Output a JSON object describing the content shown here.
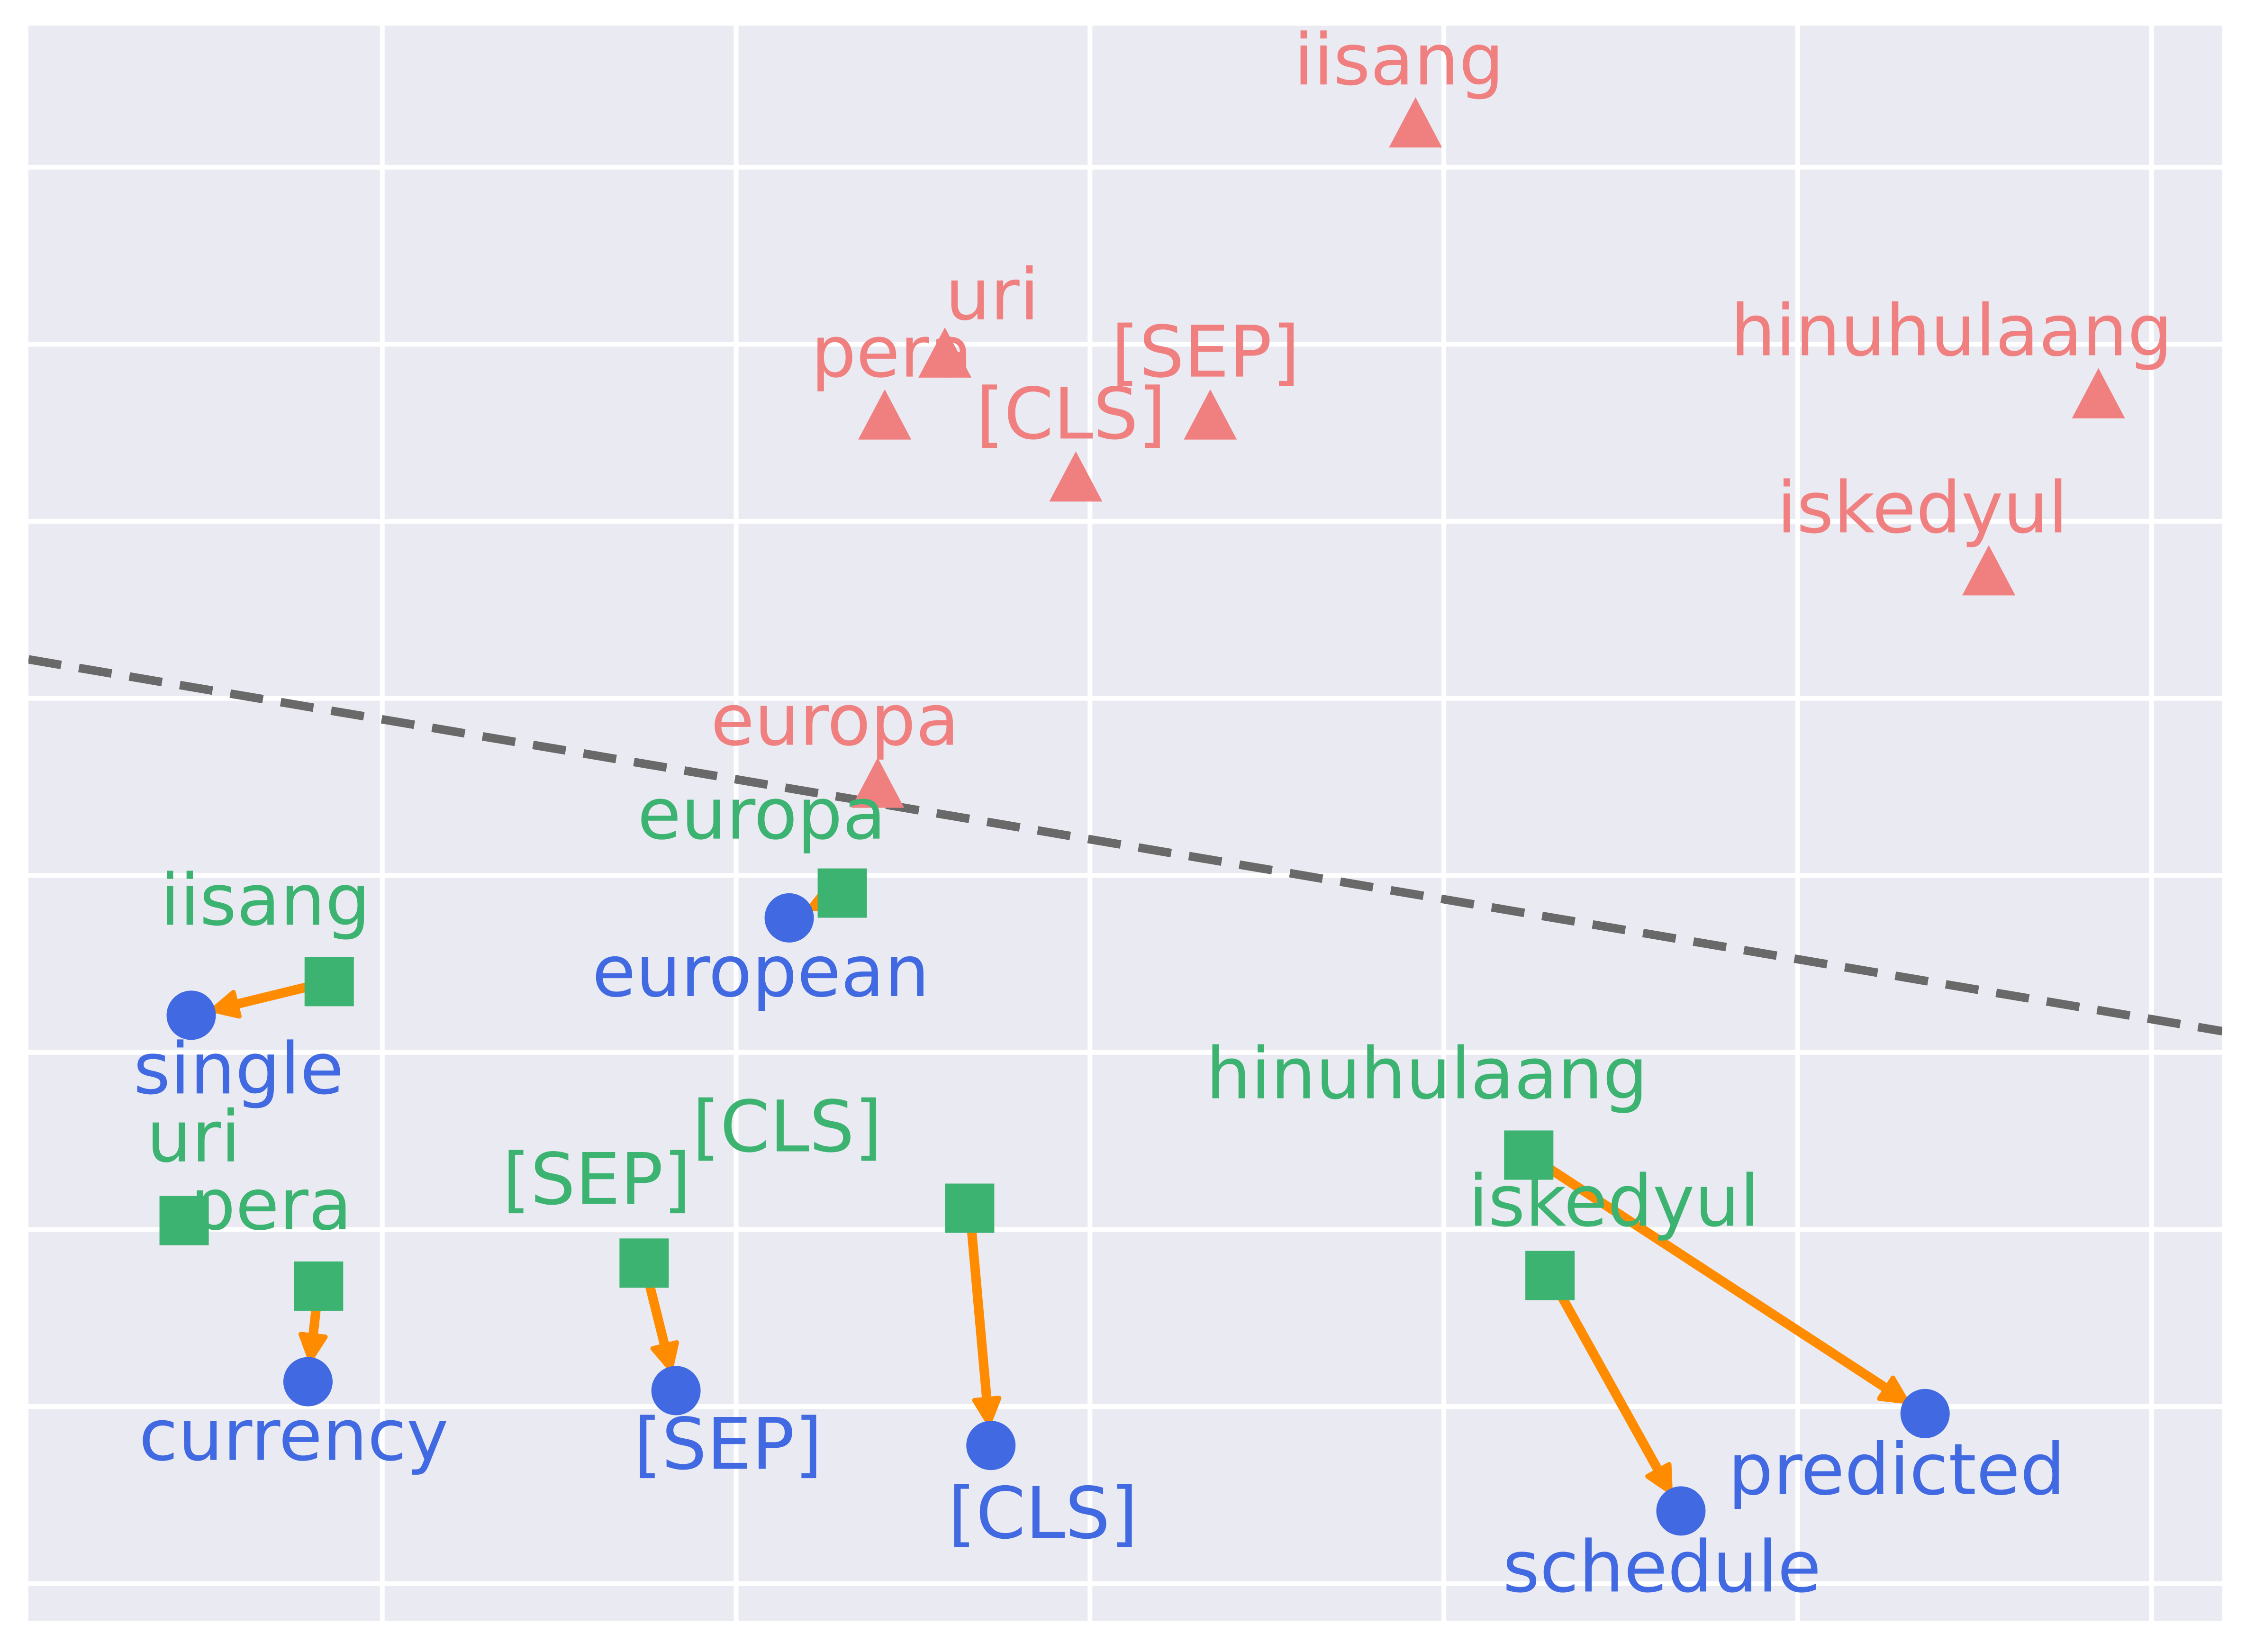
{
  "chart_data": {
    "type": "scatter",
    "title": "",
    "xlabel": "",
    "ylabel": "",
    "xlim": [
      -0.43,
      5.77
    ],
    "ylim": [
      -0.21,
      8.8
    ],
    "grid": true,
    "x_gridlines": [
      0.57,
      1.57,
      2.57,
      3.57,
      4.57,
      5.57
    ],
    "y_gridlines": [
      0,
      1,
      2,
      3,
      4,
      5,
      6,
      7,
      8
    ],
    "tick_labels_visible": false,
    "colors": {
      "background": "#eaeaf2",
      "grid": "#ffffff",
      "triangles": "#f08080",
      "squares": "#3cb371",
      "circles": "#4169e1",
      "arrows": "#ff8c00",
      "boundary": "#696969"
    },
    "boundary_line": {
      "style": "dashed",
      "points": [
        [
          -0.43,
          5.22
        ],
        [
          5.77,
          3.12
        ]
      ]
    },
    "series": [
      {
        "marker": "triangle",
        "color": "#f08080",
        "points": [
          {
            "label": "iisang",
            "x": 3.49,
            "y": 8.24
          },
          {
            "label": "uri",
            "x": 2.16,
            "y": 6.94
          },
          {
            "label": "pera",
            "x": 1.99,
            "y": 6.59
          },
          {
            "label": "[SEP]",
            "x": 2.91,
            "y": 6.59
          },
          {
            "label": "[CLS]",
            "x": 2.53,
            "y": 6.24
          },
          {
            "label": "hinuhulaang",
            "x": 5.42,
            "y": 6.71
          },
          {
            "label": "iskedyul",
            "x": 5.11,
            "y": 5.71
          },
          {
            "label": "europa",
            "x": 1.97,
            "y": 4.51
          }
        ]
      },
      {
        "marker": "square",
        "color": "#3cb371",
        "points": [
          {
            "label": "europa",
            "x": 1.87,
            "y": 3.9
          },
          {
            "label": "iisang",
            "x": 0.42,
            "y": 3.4
          },
          {
            "label": "uri",
            "x": 0.01,
            "y": 2.05
          },
          {
            "label": "pera",
            "x": 0.39,
            "y": 1.68
          },
          {
            "label": "[SEP]",
            "x": 1.31,
            "y": 1.81
          },
          {
            "label": "[CLS]",
            "x": 2.23,
            "y": 2.12
          },
          {
            "label": "hinuhulaang",
            "x": 3.81,
            "y": 2.42
          },
          {
            "label": "iskedyul",
            "x": 3.87,
            "y": 1.74
          }
        ]
      },
      {
        "marker": "circle",
        "color": "#4169e1",
        "points": [
          {
            "label": "european",
            "x": 1.72,
            "y": 3.76
          },
          {
            "label": "single",
            "x": 0.03,
            "y": 3.21
          },
          {
            "label": "currency",
            "x": 0.36,
            "y": 1.14
          },
          {
            "label": "[SEP]",
            "x": 1.4,
            "y": 1.09
          },
          {
            "label": "[CLS]",
            "x": 2.29,
            "y": 0.78
          },
          {
            "label": "predicted",
            "x": 4.93,
            "y": 0.96
          },
          {
            "label": "schedule",
            "x": 4.24,
            "y": 0.41
          }
        ]
      }
    ],
    "arrows": [
      {
        "from": [
          1.87,
          3.9
        ],
        "to": [
          1.72,
          3.76
        ]
      },
      {
        "from": [
          0.42,
          3.4
        ],
        "to": [
          0.03,
          3.21
        ]
      },
      {
        "from": [
          0.39,
          1.68
        ],
        "to": [
          0.36,
          1.14
        ]
      },
      {
        "from": [
          1.31,
          1.81
        ],
        "to": [
          1.4,
          1.09
        ]
      },
      {
        "from": [
          2.23,
          2.12
        ],
        "to": [
          2.29,
          0.78
        ]
      },
      {
        "from": [
          3.81,
          2.42
        ],
        "to": [
          4.93,
          0.96
        ]
      },
      {
        "from": [
          3.87,
          1.74
        ],
        "to": [
          4.24,
          0.41
        ]
      }
    ]
  }
}
